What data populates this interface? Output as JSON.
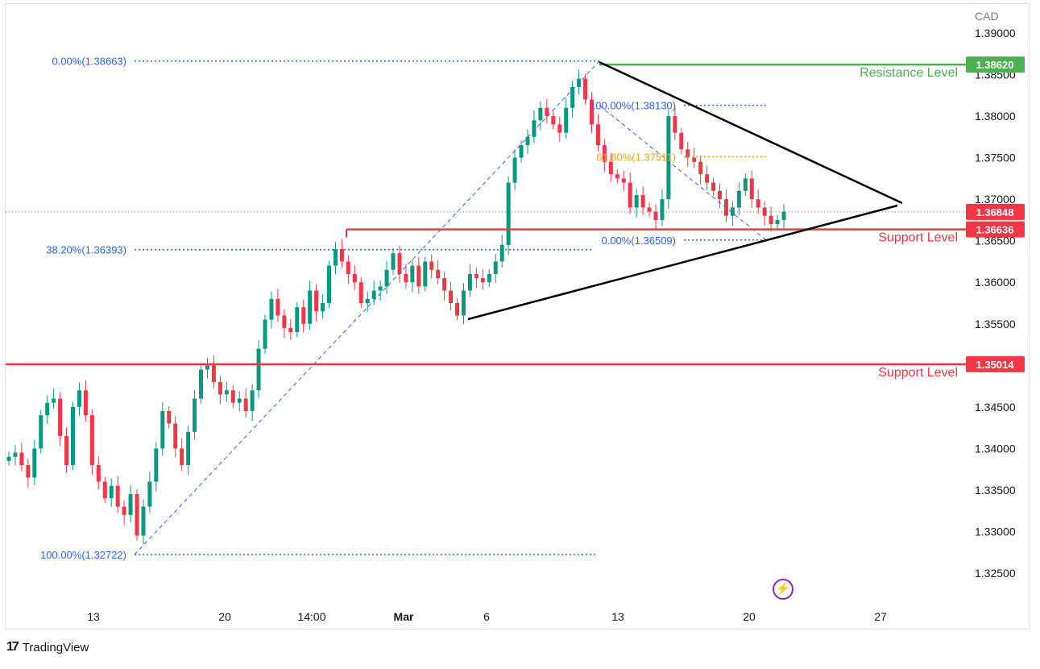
{
  "brand": {
    "name": "TradingView",
    "icon": "tradingview-logo-icon"
  },
  "currency": "CAD",
  "indicator_icon": "lightning-icon",
  "chart_data": {
    "type": "candlestick",
    "title": "",
    "ylabel": "CAD",
    "ylim": [
      1.3215,
      1.3907
    ],
    "y_ticks": [
      "1.32500",
      "1.33000",
      "1.33500",
      "1.34000",
      "1.34500",
      "1.35000",
      "1.35500",
      "1.36000",
      "1.36500",
      "1.37000",
      "1.37500",
      "1.38000",
      "1.38500",
      "1.39000"
    ],
    "x_ticks": [
      "13",
      "20",
      "14:00",
      "Mar",
      "6",
      "13",
      "20",
      "27"
    ],
    "current_price": "1.36848",
    "price_tags": [
      {
        "value": "1.38620",
        "color": "#4caf50"
      },
      {
        "value": "1.36848",
        "color": "#f23645"
      },
      {
        "value": "1.36636",
        "color": "#f23645"
      },
      {
        "value": "1.35014",
        "color": "#f23645"
      }
    ],
    "levels": [
      {
        "label": "Resistance Level",
        "value": 1.3862,
        "color": "#4caf50"
      },
      {
        "label": "Support Level",
        "value": 1.36636,
        "color": "#f23645"
      },
      {
        "label": "Support Level",
        "value": 1.35014,
        "color": "#f23645"
      }
    ],
    "fib_levels": [
      {
        "label": "0.00%(1.38663)",
        "value": 1.38663,
        "color": "#2962ff"
      },
      {
        "label": "38.20%(1.36393)",
        "value": 1.36393,
        "color": "#2962ff"
      },
      {
        "label": "100.00%(1.32722)",
        "value": 1.32722,
        "color": "#2962ff"
      },
      {
        "label": "100.00%(1.38130)",
        "value": 1.3813,
        "color": "#2962ff"
      },
      {
        "label": "61.80%(1.37511)",
        "value": 1.37511,
        "color": "#f7a600"
      },
      {
        "label": "0.00%(1.36509)",
        "value": 1.36509,
        "color": "#2962ff"
      }
    ],
    "close_series": [
      1.339,
      1.3395,
      1.338,
      1.3365,
      1.34,
      1.344,
      1.3455,
      1.346,
      1.3415,
      1.338,
      1.345,
      1.347,
      1.344,
      1.338,
      1.336,
      1.334,
      1.3355,
      1.333,
      1.332,
      1.3345,
      1.3295,
      1.333,
      1.336,
      1.34,
      1.3445,
      1.343,
      1.34,
      1.338,
      1.342,
      1.346,
      1.3495,
      1.35,
      1.348,
      1.3465,
      1.347,
      1.3455,
      1.346,
      1.3445,
      1.347,
      1.352,
      1.3555,
      1.358,
      1.356,
      1.3545,
      1.354,
      1.357,
      1.355,
      1.359,
      1.3565,
      1.3575,
      1.362,
      1.364,
      1.3625,
      1.361,
      1.36,
      1.3575,
      1.358,
      1.359,
      1.3595,
      1.3615,
      1.3635,
      1.361,
      1.36,
      1.362,
      1.3595,
      1.3625,
      1.3615,
      1.3605,
      1.359,
      1.3575,
      1.356,
      1.359,
      1.361,
      1.3605,
      1.36,
      1.361,
      1.3625,
      1.3645,
      1.372,
      1.375,
      1.3765,
      1.3775,
      1.3795,
      1.381,
      1.38,
      1.379,
      1.378,
      1.381,
      1.3835,
      1.3845,
      1.382,
      1.379,
      1.3765,
      1.3745,
      1.373,
      1.3725,
      1.372,
      1.369,
      1.3705,
      1.369,
      1.3685,
      1.3675,
      1.37,
      1.38,
      1.378,
      1.376,
      1.375,
      1.3745,
      1.373,
      1.372,
      1.371,
      1.37,
      1.368,
      1.369,
      1.371,
      1.3725,
      1.37,
      1.369,
      1.368,
      1.367,
      1.3675,
      1.3685
    ]
  }
}
